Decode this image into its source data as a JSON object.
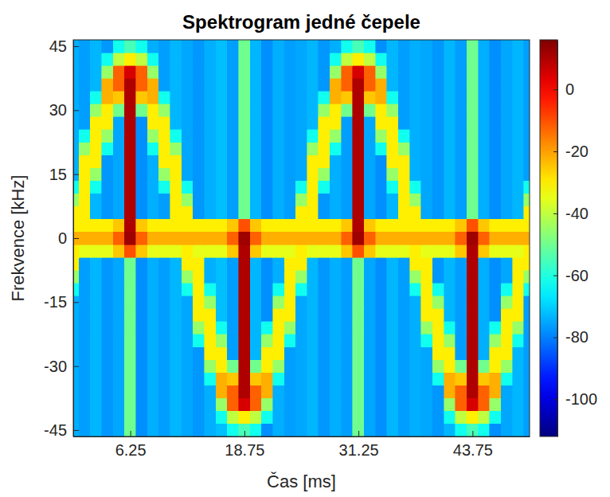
{
  "chart_data": {
    "type": "heatmap",
    "title": "Spektrogram jedné čepele",
    "x_label": "Čas [ms]",
    "y_label": "Frekvence [kHz]",
    "color": "jet",
    "xlim": [
      0,
      50
    ],
    "ylim": [
      -46.5,
      46.5
    ],
    "xticks": [
      6.25,
      18.75,
      31.25,
      43.75
    ],
    "yticks": [
      -45,
      -30,
      -15,
      0,
      15,
      30,
      45
    ],
    "colorbar": {
      "range": [
        -112,
        16
      ],
      "ticks": [
        -100,
        -80,
        -60,
        -40,
        -20,
        0
      ]
    },
    "x": [
      0,
      1.25,
      2.5,
      3.75,
      5,
      6.25,
      7.5,
      8.75,
      10,
      11.25,
      12.5,
      13.75,
      15,
      16.25,
      17.5,
      18.75,
      20,
      21.25,
      22.5,
      23.75,
      25,
      26.25,
      27.5,
      28.75,
      30,
      31.25,
      32.5,
      33.75,
      35,
      36.25,
      37.5,
      38.75,
      40,
      41.25,
      42.5,
      43.75,
      45,
      46.25,
      47.5,
      48.75,
      50
    ],
    "y": [
      -45,
      -42,
      -39,
      -36,
      -33,
      -30,
      -27,
      -24,
      -21,
      -18,
      -15,
      -12,
      -9,
      -6,
      -3,
      0,
      3,
      6,
      9,
      12,
      15,
      18,
      21,
      24,
      27,
      30,
      33,
      36,
      39,
      42,
      45
    ],
    "values": [
      [
        -74,
        -76,
        -73,
        -77,
        -75,
        -50,
        -78,
        -74,
        -76,
        -73,
        -75,
        -77,
        -74,
        -72,
        -62,
        -55,
        -62,
        -78,
        -74,
        -76,
        -75,
        -73,
        -77,
        -74,
        -76,
        -50,
        -75,
        -78,
        -73,
        -76,
        -74,
        -75,
        -77,
        -73,
        -62,
        -55,
        -62,
        -78,
        -75,
        -73,
        -76
      ],
      [
        -74,
        -76,
        -73,
        -77,
        -75,
        -50,
        -78,
        -74,
        -76,
        -73,
        -75,
        -77,
        -74,
        -62,
        -40,
        -30,
        -40,
        -62,
        -74,
        -76,
        -75,
        -73,
        -77,
        -74,
        -76,
        -50,
        -75,
        -78,
        -73,
        -76,
        -74,
        -75,
        -77,
        -62,
        -40,
        -30,
        -40,
        -62,
        -75,
        -73,
        -76
      ],
      [
        -74,
        -76,
        -73,
        -77,
        -75,
        -50,
        -78,
        -74,
        -76,
        -73,
        -75,
        -77,
        -74,
        -45,
        -12,
        5,
        -12,
        -45,
        -74,
        -76,
        -75,
        -73,
        -77,
        -74,
        -76,
        -50,
        -75,
        -78,
        -73,
        -76,
        -74,
        -75,
        -77,
        -45,
        -12,
        5,
        -12,
        -45,
        -75,
        -73,
        -76
      ],
      [
        -74,
        -76,
        -73,
        -77,
        -75,
        -50,
        -78,
        -74,
        -76,
        -73,
        -75,
        -77,
        -74,
        -22,
        -12,
        10,
        -12,
        -22,
        -74,
        -76,
        -75,
        -73,
        -77,
        -74,
        -76,
        -50,
        -75,
        -78,
        -73,
        -76,
        -74,
        -75,
        -77,
        -22,
        -12,
        10,
        -12,
        -22,
        -75,
        -73,
        -76
      ],
      [
        -74,
        -76,
        -73,
        -77,
        -75,
        -50,
        -78,
        -74,
        -76,
        -73,
        -75,
        -77,
        -62,
        -22,
        -25,
        10,
        -25,
        -22,
        -62,
        -76,
        -75,
        -73,
        -77,
        -74,
        -76,
        -50,
        -75,
        -78,
        -73,
        -76,
        -74,
        -75,
        -62,
        -22,
        -25,
        10,
        -25,
        -22,
        -62,
        -73,
        -76
      ],
      [
        -74,
        -76,
        -73,
        -77,
        -75,
        -50,
        -78,
        -74,
        -76,
        -73,
        -75,
        -77,
        -45,
        -30,
        -50,
        10,
        -50,
        -30,
        -45,
        -76,
        -75,
        -73,
        -77,
        -74,
        -76,
        -50,
        -75,
        -78,
        -73,
        -76,
        -74,
        -75,
        -45,
        -30,
        -50,
        10,
        -50,
        -30,
        -45,
        -73,
        -76
      ],
      [
        -74,
        -76,
        -73,
        -77,
        -75,
        -50,
        -78,
        -74,
        -76,
        -73,
        -75,
        -77,
        -30,
        -30,
        -76,
        10,
        -73,
        -30,
        -30,
        -76,
        -75,
        -73,
        -77,
        -74,
        -76,
        -50,
        -75,
        -78,
        -73,
        -76,
        -74,
        -75,
        -30,
        -30,
        -76,
        10,
        -74,
        -30,
        -30,
        -73,
        -76
      ],
      [
        -74,
        -76,
        -73,
        -77,
        -75,
        -50,
        -78,
        -74,
        -76,
        -73,
        -75,
        -62,
        -30,
        -45,
        -76,
        10,
        -73,
        -45,
        -30,
        -62,
        -75,
        -73,
        -77,
        -74,
        -76,
        -50,
        -75,
        -78,
        -73,
        -76,
        -74,
        -62,
        -30,
        -45,
        -76,
        10,
        -74,
        -45,
        -30,
        -62,
        -76
      ],
      [
        -74,
        -76,
        -73,
        -77,
        -75,
        -50,
        -78,
        -74,
        -76,
        -73,
        -75,
        -45,
        -30,
        -62,
        -76,
        10,
        -73,
        -62,
        -30,
        -45,
        -75,
        -73,
        -77,
        -74,
        -76,
        -50,
        -75,
        -78,
        -73,
        -76,
        -74,
        -45,
        -30,
        -62,
        -76,
        10,
        -74,
        -62,
        -30,
        -45,
        -76
      ],
      [
        -74,
        -76,
        -73,
        -77,
        -75,
        -50,
        -78,
        -74,
        -76,
        -73,
        -75,
        -30,
        -30,
        -72,
        -76,
        10,
        -73,
        -78,
        -30,
        -30,
        -75,
        -73,
        -77,
        -74,
        -76,
        -50,
        -75,
        -78,
        -73,
        -76,
        -74,
        -30,
        -30,
        -73,
        -76,
        10,
        -74,
        -78,
        -30,
        -30,
        -76
      ],
      [
        -74,
        -76,
        -73,
        -77,
        -75,
        -50,
        -78,
        -74,
        -76,
        -73,
        -75,
        -30,
        -45,
        -72,
        -76,
        10,
        -73,
        -78,
        -45,
        -30,
        -75,
        -73,
        -77,
        -74,
        -76,
        -50,
        -75,
        -78,
        -73,
        -76,
        -74,
        -30,
        -45,
        -73,
        -76,
        10,
        -74,
        -78,
        -45,
        -30,
        -76
      ],
      [
        -62,
        -76,
        -73,
        -77,
        -75,
        -50,
        -78,
        -74,
        -76,
        -73,
        -62,
        -30,
        -62,
        -72,
        -76,
        10,
        -73,
        -78,
        -62,
        -30,
        -62,
        -73,
        -77,
        -74,
        -76,
        -50,
        -75,
        -78,
        -73,
        -76,
        -62,
        -30,
        -62,
        -73,
        -76,
        10,
        -74,
        -78,
        -62,
        -30,
        -62
      ],
      [
        -45,
        -76,
        -73,
        -77,
        -75,
        -50,
        -78,
        -74,
        -76,
        -73,
        -45,
        -30,
        -74,
        -72,
        -76,
        10,
        -73,
        -78,
        -74,
        -30,
        -45,
        -73,
        -77,
        -74,
        -76,
        -50,
        -75,
        -78,
        -73,
        -76,
        -45,
        -30,
        -77,
        -73,
        -76,
        10,
        -74,
        -78,
        -75,
        -30,
        -45
      ],
      [
        -30,
        -76,
        -73,
        -77,
        -75,
        -50,
        -78,
        -74,
        -76,
        -73,
        -30,
        -30,
        -74,
        -72,
        -76,
        10,
        -73,
        -78,
        -74,
        -30,
        -30,
        -73,
        -77,
        -74,
        -76,
        -50,
        -75,
        -78,
        -73,
        -76,
        -30,
        -30,
        -77,
        -73,
        -76,
        10,
        -74,
        -78,
        -75,
        -30,
        -30
      ],
      [
        -30,
        -35,
        -35,
        -35,
        -25,
        -10,
        -25,
        -35,
        -35,
        -35,
        -30,
        -35,
        -35,
        -35,
        -25,
        10,
        -25,
        -35,
        -35,
        -35,
        -30,
        -35,
        -35,
        -35,
        -25,
        -10,
        -25,
        -35,
        -35,
        -35,
        -30,
        -35,
        -35,
        -35,
        -25,
        10,
        -25,
        -35,
        -35,
        -35,
        -30
      ],
      [
        -22,
        -22,
        -22,
        -22,
        -12,
        12,
        -12,
        -22,
        -22,
        -22,
        -22,
        -22,
        -22,
        -22,
        -12,
        12,
        -12,
        -22,
        -22,
        -22,
        -22,
        -22,
        -22,
        -22,
        -12,
        12,
        -12,
        -22,
        -22,
        -22,
        -22,
        -22,
        -22,
        -22,
        -12,
        12,
        -12,
        -22,
        -22,
        -22,
        -22
      ],
      [
        -30,
        -30,
        -30,
        -30,
        -25,
        10,
        -25,
        -30,
        -30,
        -30,
        -30,
        -30,
        -30,
        -30,
        -25,
        -10,
        -25,
        -30,
        -30,
        -30,
        -30,
        -30,
        -30,
        -30,
        -25,
        10,
        -25,
        -30,
        -30,
        -30,
        -30,
        -30,
        -30,
        -30,
        -25,
        -10,
        -25,
        -30,
        -30,
        -30,
        -30
      ],
      [
        -30,
        -30,
        -73,
        -77,
        -75,
        10,
        -78,
        -74,
        -76,
        -30,
        -30,
        -77,
        -74,
        -72,
        -76,
        -50,
        -73,
        -78,
        -74,
        -76,
        -30,
        -30,
        -77,
        -74,
        -76,
        10,
        -75,
        -78,
        -73,
        -30,
        -30,
        -75,
        -77,
        -73,
        -76,
        -50,
        -74,
        -78,
        -75,
        -73,
        -30
      ],
      [
        -45,
        -30,
        -73,
        -77,
        -75,
        10,
        -78,
        -74,
        -76,
        -30,
        -45,
        -77,
        -74,
        -72,
        -76,
        -50,
        -73,
        -78,
        -74,
        -76,
        -45,
        -30,
        -77,
        -74,
        -76,
        10,
        -75,
        -78,
        -73,
        -30,
        -45,
        -75,
        -77,
        -73,
        -76,
        -50,
        -74,
        -78,
        -75,
        -73,
        -45
      ],
      [
        -62,
        -30,
        -62,
        -77,
        -75,
        10,
        -78,
        -74,
        -62,
        -30,
        -62,
        -77,
        -74,
        -72,
        -76,
        -50,
        -73,
        -78,
        -74,
        -76,
        -62,
        -30,
        -62,
        -74,
        -76,
        10,
        -75,
        -78,
        -62,
        -30,
        -62,
        -75,
        -77,
        -73,
        -76,
        -50,
        -74,
        -78,
        -75,
        -73,
        -62
      ],
      [
        -74,
        -30,
        -45,
        -77,
        -75,
        10,
        -78,
        -74,
        -45,
        -30,
        -75,
        -77,
        -74,
        -72,
        -76,
        -50,
        -73,
        -78,
        -74,
        -76,
        -75,
        -30,
        -45,
        -74,
        -76,
        10,
        -75,
        -78,
        -45,
        -30,
        -74,
        -75,
        -77,
        -73,
        -76,
        -50,
        -74,
        -78,
        -75,
        -73,
        -76
      ],
      [
        -74,
        -30,
        -30,
        -77,
        -75,
        10,
        -78,
        -74,
        -30,
        -30,
        -75,
        -77,
        -74,
        -72,
        -76,
        -50,
        -73,
        -78,
        -74,
        -76,
        -75,
        -30,
        -30,
        -74,
        -76,
        10,
        -75,
        -78,
        -30,
        -30,
        -74,
        -75,
        -77,
        -73,
        -76,
        -50,
        -74,
        -78,
        -75,
        -73,
        -76
      ],
      [
        -74,
        -45,
        -30,
        -62,
        -75,
        10,
        -78,
        -62,
        -30,
        -45,
        -75,
        -77,
        -74,
        -72,
        -76,
        -50,
        -73,
        -78,
        -74,
        -76,
        -75,
        -45,
        -30,
        -62,
        -76,
        10,
        -75,
        -62,
        -30,
        -45,
        -74,
        -75,
        -77,
        -73,
        -76,
        -50,
        -74,
        -78,
        -75,
        -73,
        -76
      ],
      [
        -74,
        -62,
        -30,
        -45,
        -75,
        10,
        -78,
        -45,
        -30,
        -62,
        -75,
        -77,
        -74,
        -72,
        -76,
        -50,
        -73,
        -78,
        -74,
        -76,
        -75,
        -62,
        -30,
        -45,
        -76,
        10,
        -75,
        -45,
        -30,
        -62,
        -74,
        -75,
        -77,
        -73,
        -76,
        -50,
        -74,
        -78,
        -75,
        -73,
        -76
      ],
      [
        -74,
        -76,
        -30,
        -30,
        -75,
        10,
        -78,
        -30,
        -30,
        -73,
        -75,
        -77,
        -74,
        -72,
        -76,
        -50,
        -73,
        -78,
        -74,
        -76,
        -75,
        -73,
        -30,
        -30,
        -76,
        10,
        -75,
        -30,
        -30,
        -76,
        -74,
        -75,
        -77,
        -73,
        -76,
        -50,
        -74,
        -78,
        -75,
        -73,
        -76
      ],
      [
        -74,
        -76,
        -45,
        -30,
        -50,
        10,
        -50,
        -30,
        -45,
        -73,
        -75,
        -77,
        -74,
        -72,
        -76,
        -50,
        -73,
        -78,
        -74,
        -76,
        -75,
        -73,
        -45,
        -30,
        -50,
        10,
        -50,
        -30,
        -45,
        -76,
        -74,
        -75,
        -77,
        -73,
        -76,
        -50,
        -74,
        -78,
        -75,
        -73,
        -76
      ],
      [
        -74,
        -76,
        -62,
        -22,
        -25,
        10,
        -25,
        -22,
        -62,
        -73,
        -75,
        -77,
        -74,
        -72,
        -76,
        -50,
        -73,
        -78,
        -74,
        -76,
        -75,
        -73,
        -62,
        -22,
        -25,
        10,
        -25,
        -22,
        -62,
        -76,
        -74,
        -75,
        -77,
        -73,
        -76,
        -50,
        -74,
        -78,
        -75,
        -73,
        -76
      ],
      [
        -74,
        -76,
        -73,
        -22,
        -12,
        10,
        -12,
        -22,
        -76,
        -73,
        -75,
        -77,
        -74,
        -72,
        -76,
        -50,
        -73,
        -78,
        -74,
        -76,
        -75,
        -73,
        -77,
        -22,
        -12,
        10,
        -12,
        -22,
        -73,
        -76,
        -74,
        -75,
        -77,
        -73,
        -76,
        -50,
        -74,
        -78,
        -75,
        -73,
        -76
      ],
      [
        -74,
        -76,
        -73,
        -45,
        -12,
        5,
        -12,
        -45,
        -76,
        -73,
        -75,
        -77,
        -74,
        -72,
        -76,
        -50,
        -73,
        -78,
        -74,
        -76,
        -75,
        -73,
        -77,
        -45,
        -12,
        5,
        -12,
        -45,
        -73,
        -76,
        -74,
        -75,
        -77,
        -73,
        -76,
        -50,
        -74,
        -78,
        -75,
        -73,
        -76
      ],
      [
        -74,
        -76,
        -73,
        -62,
        -40,
        -30,
        -40,
        -62,
        -76,
        -73,
        -75,
        -77,
        -74,
        -72,
        -76,
        -50,
        -73,
        -78,
        -74,
        -76,
        -75,
        -73,
        -77,
        -62,
        -40,
        -30,
        -40,
        -62,
        -73,
        -76,
        -74,
        -75,
        -77,
        -73,
        -76,
        -50,
        -74,
        -78,
        -75,
        -73,
        -76
      ],
      [
        -74,
        -76,
        -73,
        -77,
        -62,
        -55,
        -62,
        -74,
        -76,
        -73,
        -75,
        -77,
        -74,
        -72,
        -76,
        -50,
        -73,
        -78,
        -74,
        -76,
        -75,
        -73,
        -77,
        -74,
        -62,
        -55,
        -62,
        -78,
        -73,
        -76,
        -74,
        -75,
        -77,
        -73,
        -76,
        -50,
        -74,
        -78,
        -75,
        -73,
        -76
      ]
    ]
  }
}
